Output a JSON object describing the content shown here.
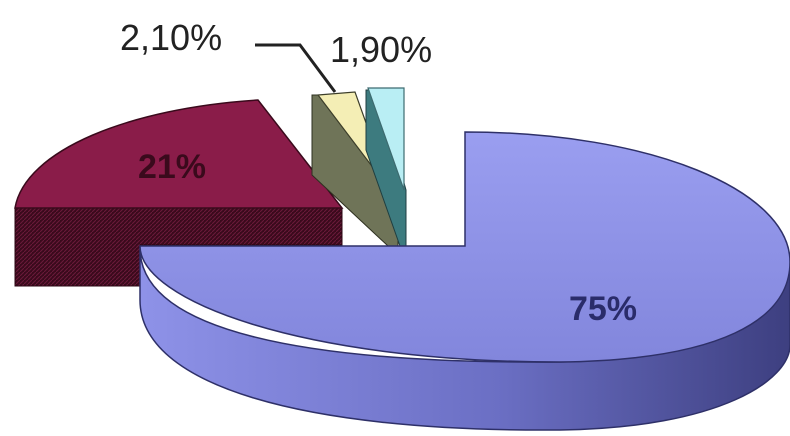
{
  "chart_data": {
    "type": "pie",
    "style": "3d-exploded",
    "title": "",
    "slices": [
      {
        "label": "75%",
        "value": 75,
        "color": "#8b8fe6",
        "side_color": "#5b5fb0"
      },
      {
        "label": "21%",
        "value": 21,
        "color": "#8a1c49",
        "side_color": "#4a0e24"
      },
      {
        "label": "2,10%",
        "value": 2.1,
        "color": "#f4eeb5",
        "side_color": "#6f7458"
      },
      {
        "label": "1,90%",
        "value": 1.9,
        "color": "#b9eef4",
        "side_color": "#3d7b7f"
      }
    ],
    "legend": "none"
  }
}
